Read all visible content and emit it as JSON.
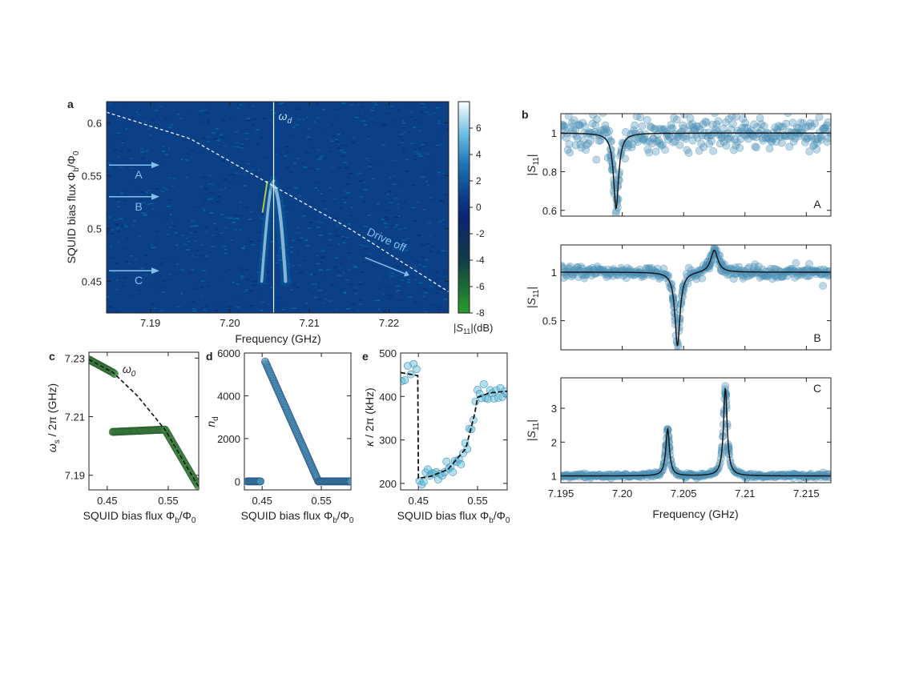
{
  "colors": {
    "map_background": "#0b3f86",
    "map_stripe": "#0a6aa8",
    "point_fill": "#4a8fb5",
    "point_green": "#3f8a44",
    "point_cyan": "#5ab8d6",
    "fit_line": "#111111",
    "annotation": "#7fc2ee"
  },
  "chart_data": [
    {
      "panel": "a",
      "type": "heatmap",
      "xlabel": "Frequency (GHz)",
      "ylabel": "SQUID bias flux Φb/Φ0",
      "xlim": [
        7.1845,
        7.2275
      ],
      "ylim": [
        0.42,
        0.62
      ],
      "xticks": [
        7.19,
        7.2,
        7.21,
        7.22
      ],
      "xtick_labels": [
        "7.19",
        "7.20",
        "7.21",
        "7.22"
      ],
      "yticks": [
        0.45,
        0.5,
        0.55,
        0.6
      ],
      "ytick_labels": [
        "0.45",
        "0.5",
        "0.55",
        "0.6"
      ],
      "drive_label": "ωd",
      "drive_frequency": 7.2055,
      "resonance_curve": {
        "x": [
          7.1845,
          7.195,
          7.2055,
          7.215,
          7.2275
        ],
        "y": [
          0.61,
          0.585,
          0.54,
          0.5,
          0.44
        ]
      },
      "annotations": [
        {
          "text": "A",
          "flux": 0.56
        },
        {
          "text": "B",
          "flux": 0.53
        },
        {
          "text": "C",
          "flux": 0.46
        },
        {
          "text": "Drive off",
          "flux": 0.48
        }
      ],
      "colorbar": {
        "label": "|S11|(dB)",
        "range": [
          -8,
          8
        ],
        "ticks": [
          -8,
          -6,
          -4,
          -2,
          0,
          2,
          4,
          6
        ],
        "tick_labels": [
          "-8",
          "-6",
          "-4",
          "-2",
          "0",
          "2",
          "4",
          "6"
        ]
      }
    },
    {
      "panel": "b",
      "type": "scatter",
      "xlabel": "Frequency (GHz)",
      "ylabel": "|S11|",
      "xlim": [
        7.195,
        7.217
      ],
      "xticks": [
        7.195,
        7.2,
        7.205,
        7.21,
        7.215
      ],
      "xtick_labels": [
        "7.195",
        "7.20",
        "7.205",
        "7.21",
        "7.215"
      ],
      "subpanels": [
        {
          "label": "A",
          "ylim": [
            0.57,
            1.1
          ],
          "yticks": [
            0.6,
            0.8,
            1
          ],
          "ytick_labels": [
            "0.6",
            "0.8",
            "1"
          ],
          "peaks": [
            {
              "f0": 7.1995,
              "depth": 0.39,
              "width": 0.00025
            }
          ],
          "noise": 0.04
        },
        {
          "label": "B",
          "ylim": [
            0.2,
            1.28
          ],
          "yticks": [
            0.5,
            1
          ],
          "ytick_labels": [
            "0.5",
            "1"
          ],
          "peaks": [
            {
              "f0": 7.2045,
              "depth": 0.76,
              "width": 0.00025
            },
            {
              "f0": 7.2075,
              "depth": -0.23,
              "width": 0.00035
            }
          ],
          "noise": 0.04
        },
        {
          "label": "C",
          "ylim": [
            0.8,
            3.9
          ],
          "yticks": [
            1,
            2,
            3
          ],
          "ytick_labels": [
            "1",
            "2",
            "3"
          ],
          "peaks": [
            {
              "f0": 7.2037,
              "depth": -1.38,
              "width": 0.00018
            },
            {
              "f0": 7.2084,
              "depth": -2.58,
              "width": 0.00018
            }
          ],
          "noise": 0.04
        }
      ]
    },
    {
      "panel": "c",
      "type": "scatter",
      "xlabel": "SQUID bias flux Φb/Φ0",
      "ylabel": "ωs / 2π (GHz)",
      "xlim": [
        0.42,
        0.6
      ],
      "ylim": [
        7.185,
        7.232
      ],
      "xticks": [
        0.45,
        0.55
      ],
      "xtick_labels": [
        "0.45",
        "0.55"
      ],
      "yticks": [
        7.19,
        7.21,
        7.23
      ],
      "ytick_labels": [
        "7.19",
        "7.21",
        "7.23"
      ],
      "curve_label": "ω0",
      "omega0_curve": {
        "x": [
          0.42,
          0.46,
          0.5,
          0.545,
          0.6
        ],
        "y": [
          7.2295,
          7.225,
          7.217,
          7.2055,
          7.186
        ]
      },
      "branch_low": {
        "x": [
          0.459,
          0.545
        ],
        "y": [
          7.2048,
          7.2056
        ]
      }
    },
    {
      "panel": "d",
      "type": "scatter",
      "xlabel": "SQUID bias flux Φb/Φ0",
      "ylabel": "nd",
      "xlim": [
        0.42,
        0.6
      ],
      "ylim": [
        -400,
        6000
      ],
      "xticks": [
        0.45,
        0.55
      ],
      "xtick_labels": [
        "0.45",
        "0.55"
      ],
      "yticks": [
        0,
        2000,
        4000,
        6000
      ],
      "ytick_labels": [
        "0",
        "2000",
        "4000",
        "6000"
      ],
      "series": {
        "x": [
          0.455,
          0.545
        ],
        "y": [
          5600,
          0
        ]
      },
      "baseline_left": {
        "x": [
          0.425,
          0.448
        ],
        "y": 0
      },
      "baseline_right": {
        "x": [
          0.545,
          0.6
        ],
        "y": 0
      }
    },
    {
      "panel": "e",
      "type": "scatter",
      "xlabel": "SQUID bias flux Φb/Φ0",
      "ylabel": "κ / 2π (kHz)",
      "xlim": [
        0.42,
        0.6
      ],
      "ylim": [
        185,
        500
      ],
      "xticks": [
        0.45,
        0.55
      ],
      "xtick_labels": [
        "0.45",
        "0.55"
      ],
      "yticks": [
        200,
        300,
        400,
        500
      ],
      "ytick_labels": [
        "200",
        "300",
        "400",
        "500"
      ],
      "model_curve": {
        "x": [
          0.42,
          0.449,
          0.45,
          0.47,
          0.5,
          0.53,
          0.545,
          0.55,
          0.57,
          0.6
        ],
        "y": [
          455,
          448,
          212,
          216,
          232,
          280,
          360,
          398,
          408,
          412
        ]
      }
    }
  ]
}
